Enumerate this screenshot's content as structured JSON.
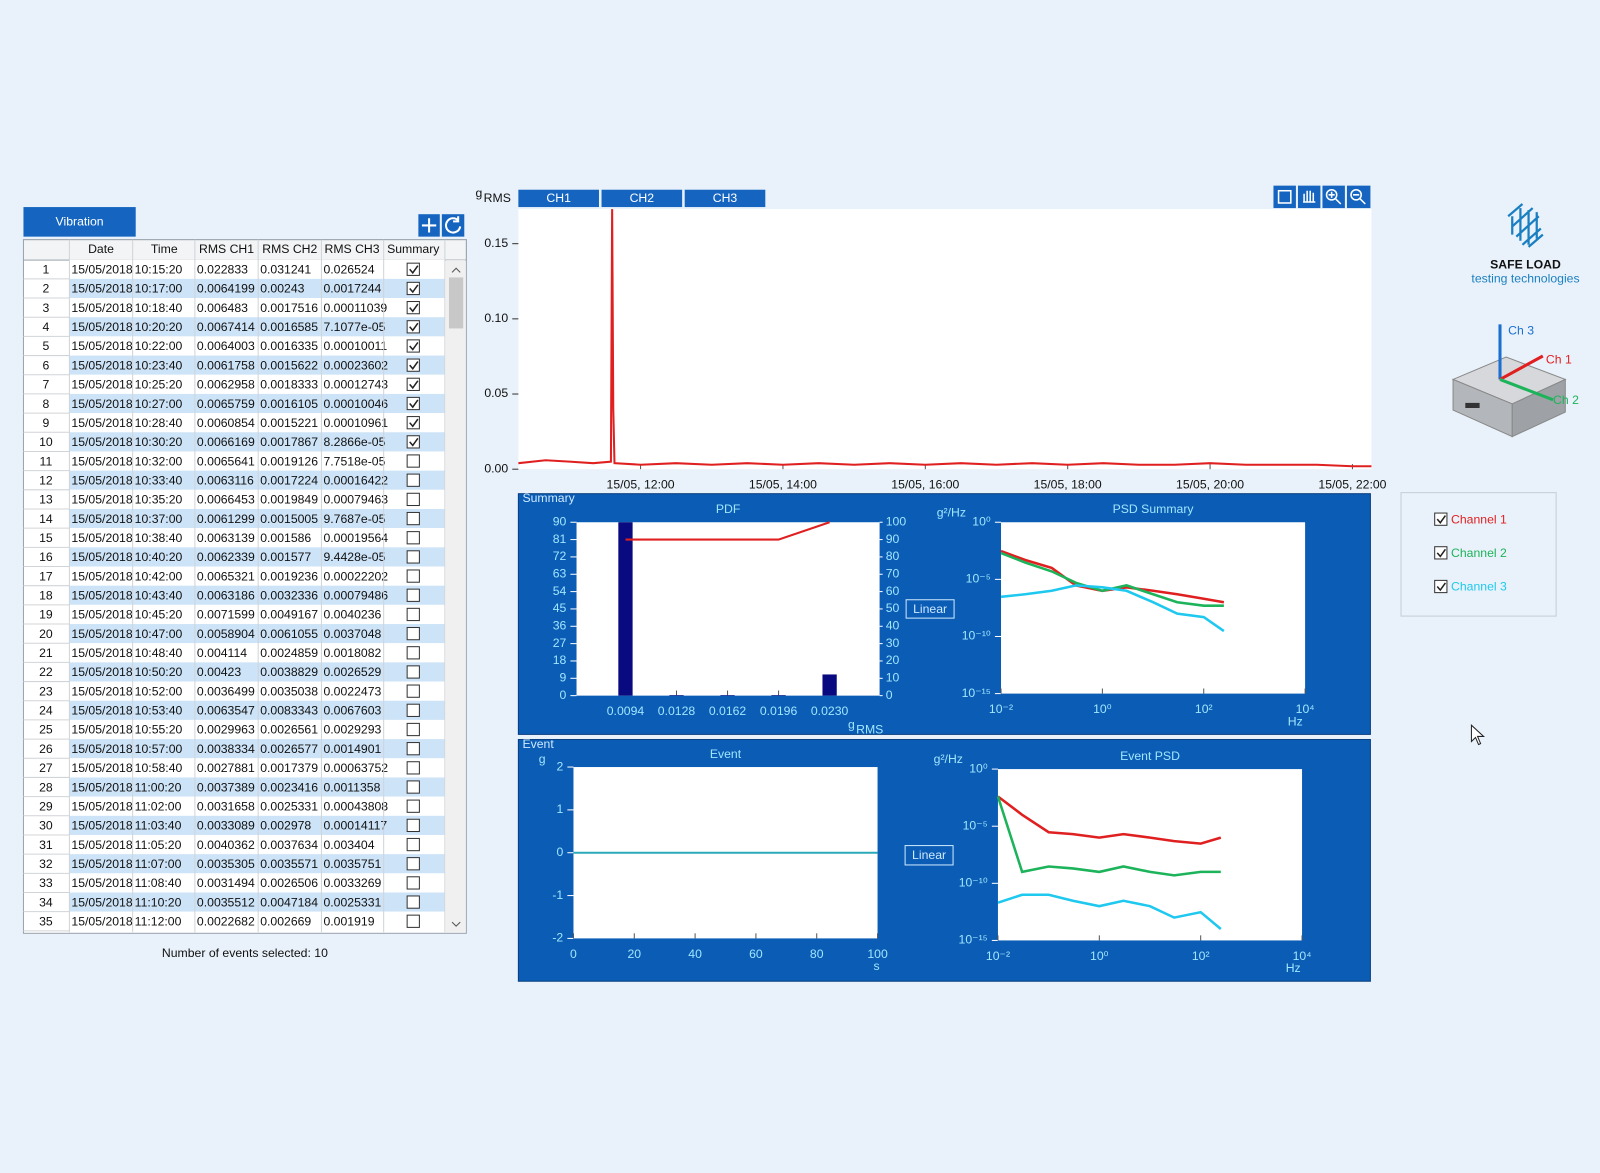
{
  "tab": "Vibration",
  "table": {
    "columns": [
      "Date",
      "Time",
      "RMS CH1",
      "RMS CH2",
      "RMS CH3",
      "Summary"
    ],
    "rows": [
      [
        1,
        "15/05/2018",
        "10:15:20",
        "0.022833",
        "0.031241",
        "0.026524",
        true
      ],
      [
        2,
        "15/05/2018",
        "10:17:00",
        "0.0064199",
        "0.00243",
        "0.0017244",
        true
      ],
      [
        3,
        "15/05/2018",
        "10:18:40",
        "0.006483",
        "0.0017516",
        "0.00011039",
        true
      ],
      [
        4,
        "15/05/2018",
        "10:20:20",
        "0.0067414",
        "0.0016585",
        "7.1077e-05",
        true
      ],
      [
        5,
        "15/05/2018",
        "10:22:00",
        "0.0064003",
        "0.0016335",
        "0.00010011",
        true
      ],
      [
        6,
        "15/05/2018",
        "10:23:40",
        "0.0061758",
        "0.0015622",
        "0.00023602",
        true
      ],
      [
        7,
        "15/05/2018",
        "10:25:20",
        "0.0062958",
        "0.0018333",
        "0.00012743",
        true
      ],
      [
        8,
        "15/05/2018",
        "10:27:00",
        "0.0065759",
        "0.0016105",
        "0.00010046",
        true
      ],
      [
        9,
        "15/05/2018",
        "10:28:40",
        "0.0060854",
        "0.0015221",
        "0.00010961",
        true
      ],
      [
        10,
        "15/05/2018",
        "10:30:20",
        "0.0066169",
        "0.0017867",
        "8.2866e-05",
        true
      ],
      [
        11,
        "15/05/2018",
        "10:32:00",
        "0.0065641",
        "0.0019126",
        "7.7518e-05",
        false
      ],
      [
        12,
        "15/05/2018",
        "10:33:40",
        "0.0063116",
        "0.0017224",
        "0.00016422",
        false
      ],
      [
        13,
        "15/05/2018",
        "10:35:20",
        "0.0066453",
        "0.0019849",
        "0.00079463",
        false
      ],
      [
        14,
        "15/05/2018",
        "10:37:00",
        "0.0061299",
        "0.0015005",
        "9.7687e-05",
        false
      ],
      [
        15,
        "15/05/2018",
        "10:38:40",
        "0.0063139",
        "0.001586",
        "0.00019564",
        false
      ],
      [
        16,
        "15/05/2018",
        "10:40:20",
        "0.0062339",
        "0.001577",
        "9.4428e-05",
        false
      ],
      [
        17,
        "15/05/2018",
        "10:42:00",
        "0.0065321",
        "0.0019236",
        "0.00022202",
        false
      ],
      [
        18,
        "15/05/2018",
        "10:43:40",
        "0.0063186",
        "0.0032336",
        "0.00079486",
        false
      ],
      [
        19,
        "15/05/2018",
        "10:45:20",
        "0.0071599",
        "0.0049167",
        "0.0040236",
        false
      ],
      [
        20,
        "15/05/2018",
        "10:47:00",
        "0.0058904",
        "0.0061055",
        "0.0037048",
        false
      ],
      [
        21,
        "15/05/2018",
        "10:48:40",
        "0.004114",
        "0.0024859",
        "0.0018082",
        false
      ],
      [
        22,
        "15/05/2018",
        "10:50:20",
        "0.00423",
        "0.0038829",
        "0.0026529",
        false
      ],
      [
        23,
        "15/05/2018",
        "10:52:00",
        "0.0036499",
        "0.0035038",
        "0.0022473",
        false
      ],
      [
        24,
        "15/05/2018",
        "10:53:40",
        "0.0063547",
        "0.0083343",
        "0.0067603",
        false
      ],
      [
        25,
        "15/05/2018",
        "10:55:20",
        "0.0029963",
        "0.0026561",
        "0.0029293",
        false
      ],
      [
        26,
        "15/05/2018",
        "10:57:00",
        "0.0038334",
        "0.0026577",
        "0.0014901",
        false
      ],
      [
        27,
        "15/05/2018",
        "10:58:40",
        "0.0027881",
        "0.0017379",
        "0.00063752",
        false
      ],
      [
        28,
        "15/05/2018",
        "11:00:20",
        "0.0037389",
        "0.0023416",
        "0.0011358",
        false
      ],
      [
        29,
        "15/05/2018",
        "11:02:00",
        "0.0031658",
        "0.0025331",
        "0.00043808",
        false
      ],
      [
        30,
        "15/05/2018",
        "11:03:40",
        "0.0033089",
        "0.002978",
        "0.00014117",
        false
      ],
      [
        31,
        "15/05/2018",
        "11:05:20",
        "0.0040362",
        "0.0037634",
        "0.003404",
        false
      ],
      [
        32,
        "15/05/2018",
        "11:07:00",
        "0.0035305",
        "0.0035571",
        "0.0035751",
        false
      ],
      [
        33,
        "15/05/2018",
        "11:08:40",
        "0.0031494",
        "0.0026506",
        "0.0033269",
        false
      ],
      [
        34,
        "15/05/2018",
        "11:10:20",
        "0.0035512",
        "0.0047184",
        "0.0025331",
        false
      ],
      [
        35,
        "15/05/2018",
        "11:12:00",
        "0.0022682",
        "0.002669",
        "0.001919",
        false
      ]
    ]
  },
  "footer": "Number of events selected: 10",
  "panels": [
    "Summary",
    "Event"
  ],
  "buttons": [
    "Linear",
    "Linear"
  ],
  "logo": {
    "name": "SAFE LOAD",
    "tagline": "testing technologies"
  },
  "device_axes": [
    {
      "label": "Ch 3",
      "color": "#1a6fd0"
    },
    {
      "label": "Ch 1",
      "color": "#e02020"
    },
    {
      "label": "Ch 2",
      "color": "#1db35a"
    }
  ],
  "chart_data": [
    {
      "type": "line",
      "y_label": {
        "text": "g",
        "sub": "RMS"
      },
      "tabs": [
        "CH1",
        "CH2",
        "CH3"
      ],
      "x": [
        "15/05, 10:17",
        "15/05, 10:40",
        "15/05, 11:00",
        "15/05, 11:20",
        "15/05, 11:35",
        "15/05, 11:36",
        "15/05, 11:37",
        "15/05, 11:38",
        "15/05, 12:00",
        "15/05, 12:30",
        "15/05, 13:00",
        "15/05, 13:30",
        "15/05, 14:00",
        "15/05, 14:30",
        "15/05, 15:00",
        "15/05, 15:30",
        "15/05, 16:00",
        "15/05, 16:30",
        "15/05, 17:00",
        "15/05, 17:30",
        "15/05, 18:00",
        "15/05, 18:30",
        "15/05, 19:00",
        "15/05, 19:30",
        "15/05, 20:00",
        "15/05, 20:30",
        "15/05, 21:00",
        "15/05, 21:30",
        "15/05, 22:00",
        "15/05, 22:16"
      ],
      "series": [
        {
          "color": "#e02020",
          "values": [
            0.004,
            0.006,
            0.005,
            0.004,
            0.005,
            0.173,
            0.04,
            0.004,
            0.003,
            0.004,
            0.003,
            0.004,
            0.003,
            0.004,
            0.003,
            0.004,
            0.003,
            0.004,
            0.003,
            0.004,
            0.003,
            0.004,
            0.003,
            0.003,
            0.004,
            0.003,
            0.003,
            0.003,
            0.002,
            0.002
          ]
        }
      ],
      "xlim": [
        "15/05, 10:17",
        "15/05, 22:16"
      ],
      "xticks": [
        "15/05, 12:00",
        "15/05, 14:00",
        "15/05, 16:00",
        "15/05, 18:00",
        "15/05, 20:00",
        "15/05, 22:00"
      ],
      "ylim": [
        0,
        0.173
      ],
      "yticks": [
        {
          "value": 0,
          "label": "0.00"
        },
        0.05,
        {
          "value": 0.1,
          "label": "0.10"
        },
        0.15
      ]
    },
    {
      "type": "bar",
      "title": "PDF",
      "x_label": {
        "text": "g",
        "sub": "RMS"
      },
      "x": [
        0.0094,
        0.0128,
        0.0162,
        0.0196,
        0.023
      ],
      "values": [
        90,
        0.3,
        0.3,
        0.3,
        11
      ],
      "color": "#0a0a80",
      "series": [
        {
          "axis": "y2",
          "color": "#e02020",
          "x": [
            0.0094,
            0.0196,
            0.023
          ],
          "values": [
            90,
            90,
            100
          ]
        }
      ],
      "xlim": [
        0.00614,
        0.02633
      ],
      "xticks": [
        0.0094,
        0.0128,
        0.0162,
        0.0196,
        {
          "value": 0.023,
          "label": "0.0230"
        }
      ],
      "ylim": [
        0,
        90
      ],
      "yticks": [
        0,
        9,
        18,
        27,
        36,
        45,
        54,
        63,
        72,
        81,
        90
      ],
      "y2lim": [
        0,
        100
      ],
      "y2ticks": [
        0,
        10,
        20,
        30,
        40,
        50,
        60,
        70,
        80,
        90,
        100
      ]
    },
    {
      "type": "line",
      "title": "PSD Summary",
      "y_label": "g²/Hz",
      "x_unit": "Hz",
      "xlog": true,
      "ylog": true,
      "x": [
        0.01,
        0.03,
        0.1,
        0.3,
        1,
        3,
        10,
        30,
        100,
        250
      ],
      "series": [
        {
          "name": "Channel 1",
          "checked": true,
          "color": "#e02020",
          "values": [
            0.003,
            0.0005,
            0.0001,
            3e-06,
            1e-06,
            2e-06,
            1e-06,
            5e-07,
            2e-07,
            1e-07
          ]
        },
        {
          "name": "Channel 2",
          "checked": true,
          "color": "#1db35a",
          "values": [
            0.002,
            0.0003,
            5e-05,
            5e-06,
            1e-06,
            3e-06,
            5e-07,
            1e-07,
            5e-08,
            5e-08
          ]
        },
        {
          "name": "Channel 3",
          "checked": true,
          "color": "#1ec8ee",
          "values": [
            3e-07,
            5e-07,
            1e-06,
            3e-06,
            2e-06,
            1e-06,
            1e-07,
            1e-08,
            5e-09,
            3e-10
          ]
        }
      ],
      "xlim": [
        0.01,
        10000
      ],
      "xticks": [
        {
          "value": 0.01,
          "label": "10⁻²"
        },
        {
          "value": 1,
          "label": "10⁰"
        },
        {
          "value": 100,
          "label": "10²"
        },
        {
          "value": 10000,
          "label": "10⁴"
        }
      ],
      "ylim": [
        1e-15,
        1
      ],
      "yticks": [
        {
          "value": 1e-15,
          "label": "10⁻¹⁵"
        },
        {
          "value": 1e-10,
          "label": "10⁻¹⁰"
        },
        {
          "value": 1e-05,
          "label": "10⁻⁵"
        },
        {
          "value": 1,
          "label": "10⁰"
        }
      ]
    },
    {
      "type": "line",
      "title": "Event",
      "y_label": "g",
      "x_unit": "s",
      "x": [
        0,
        100
      ],
      "series": [
        {
          "color": "#2aa9b8",
          "values": [
            0,
            0
          ]
        }
      ],
      "xlim": [
        0,
        100
      ],
      "xticks": [
        0,
        20,
        40,
        60,
        80,
        100
      ],
      "ylim": [
        -2,
        2
      ],
      "yticks": [
        -2,
        -1,
        0,
        1,
        2
      ]
    },
    {
      "type": "line",
      "title": "Event PSD",
      "y_label": "g²/Hz",
      "x_unit": "Hz",
      "xlog": true,
      "ylog": true,
      "x": [
        0.01,
        0.03,
        0.1,
        0.3,
        1,
        3,
        10,
        30,
        100,
        250
      ],
      "series": [
        {
          "color": "#e02020",
          "values": [
            0.004,
            0.0001,
            3e-06,
            2e-06,
            1e-06,
            2e-06,
            1e-06,
            5e-07,
            3e-07,
            1e-06
          ]
        },
        {
          "color": "#1db35a",
          "values": [
            0.004,
            1e-09,
            3e-09,
            2e-09,
            1e-09,
            3e-09,
            1e-09,
            5e-10,
            1e-09,
            1e-09
          ]
        },
        {
          "color": "#1ec8ee",
          "values": [
            2e-12,
            1e-11,
            1e-11,
            3e-12,
            1e-12,
            3e-12,
            1e-12,
            1e-13,
            3e-13,
            1e-14
          ]
        }
      ],
      "xlim": [
        0.01,
        10000
      ],
      "xticks": [
        {
          "value": 0.01,
          "label": "10⁻²"
        },
        {
          "value": 1,
          "label": "10⁰"
        },
        {
          "value": 100,
          "label": "10²"
        },
        {
          "value": 10000,
          "label": "10⁴"
        }
      ],
      "ylim": [
        1e-15,
        1
      ],
      "yticks": [
        {
          "value": 1e-15,
          "label": "10⁻¹⁵"
        },
        {
          "value": 1e-10,
          "label": "10⁻¹⁰"
        },
        {
          "value": 1e-05,
          "label": "10⁻⁵"
        },
        {
          "value": 1,
          "label": "10⁰"
        }
      ]
    }
  ]
}
